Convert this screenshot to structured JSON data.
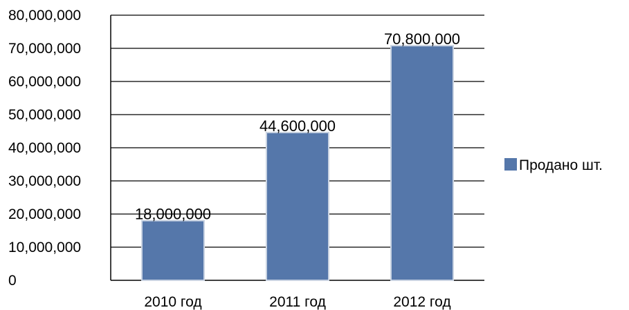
{
  "chart_data": {
    "type": "bar",
    "categories": [
      "2010 год",
      "2011 год",
      "2012 год"
    ],
    "series": [
      {
        "name": "Продано шт.",
        "values": [
          18000000,
          44600000,
          70800000
        ],
        "data_labels": [
          "18,000,000",
          "44,600,000",
          "70,800,000"
        ],
        "color": "#5577AA"
      }
    ],
    "y_ticks": [
      "0",
      "10,000,000",
      "20,000,000",
      "30,000,000",
      "40,000,000",
      "50,000,000",
      "60,000,000",
      "70,000,000",
      "80,000,000"
    ],
    "ylim": [
      0,
      80000000
    ],
    "y_step": 10000000,
    "grid": true,
    "legend_position": "right",
    "title": "",
    "xlabel": "",
    "ylabel": ""
  }
}
